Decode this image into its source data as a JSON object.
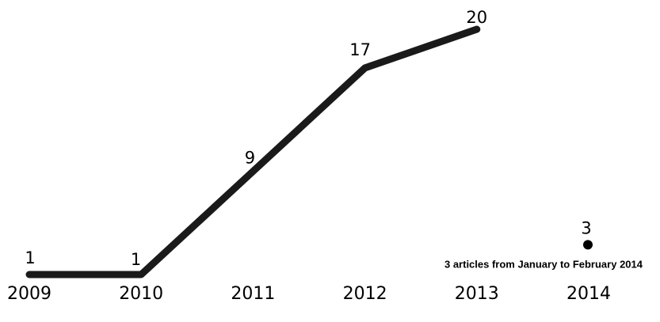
{
  "chart_data": {
    "type": "line",
    "title": "",
    "xlabel": "",
    "ylabel": "",
    "x": [
      "2009",
      "2010",
      "2011",
      "2012",
      "2013",
      "2014"
    ],
    "series": [
      {
        "values": [
          1,
          1,
          9,
          17,
          20,
          null
        ],
        "color": "#1a1a1a"
      }
    ],
    "separate_point": {
      "x": "2014",
      "value": 3,
      "color": "#000000",
      "annotation": "3 articles from January to February 2014"
    },
    "grid": false,
    "legend": "none"
  }
}
